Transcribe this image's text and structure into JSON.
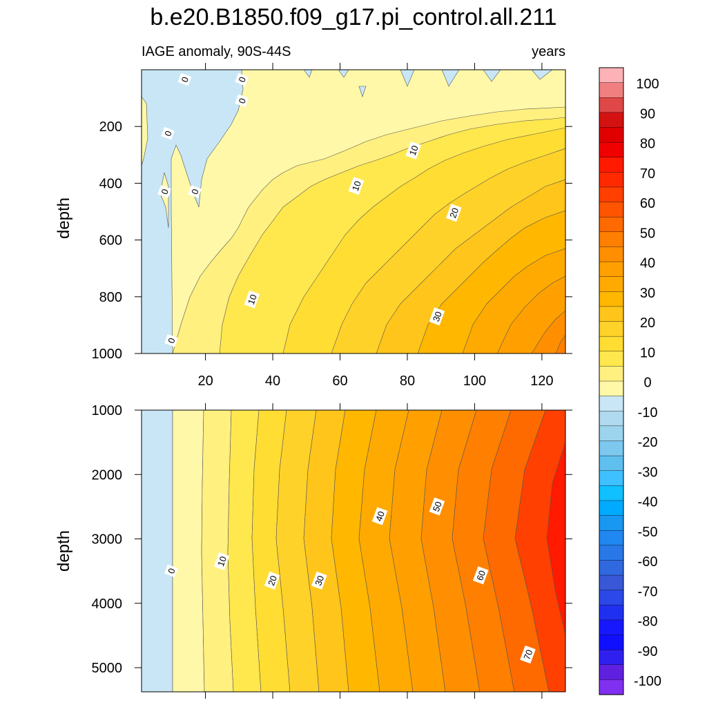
{
  "title": "b.e20.B1850.f09_g17.pi_control.all.211",
  "subtitle_left": "IAGE anomaly, 90S-44S",
  "subtitle_right": "years",
  "chart_data": [
    {
      "type": "heatmap",
      "panel": "upper",
      "ylabel": "depth",
      "xlim": [
        1,
        127
      ],
      "ylim": [
        1000,
        0
      ],
      "x_ticks": [
        20,
        40,
        60,
        80,
        100,
        120
      ],
      "y_ticks": [
        200,
        400,
        600,
        800,
        1000
      ],
      "contour_labels": [
        {
          "text": "0",
          "x": 14,
          "y": 35
        },
        {
          "text": "0",
          "x": 31,
          "y": 35
        },
        {
          "text": "0",
          "x": 31,
          "y": 110
        },
        {
          "text": "0",
          "x": 9,
          "y": 225
        },
        {
          "text": "0",
          "x": 8,
          "y": 430
        },
        {
          "text": "0",
          "x": 17,
          "y": 430
        },
        {
          "text": "10",
          "x": 82,
          "y": 285
        },
        {
          "text": "10",
          "x": 65,
          "y": 410
        },
        {
          "text": "20",
          "x": 94,
          "y": 505
        },
        {
          "text": "10",
          "x": 34,
          "y": 810
        },
        {
          "text": "30",
          "x": 89,
          "y": 870
        },
        {
          "text": "0",
          "x": 10,
          "y": 955
        }
      ]
    },
    {
      "type": "heatmap",
      "panel": "lower",
      "ylabel": "depth",
      "xlim": [
        1,
        127
      ],
      "ylim": [
        5375,
        1000
      ],
      "x_ticks": [
        20,
        40,
        60,
        80,
        100,
        120
      ],
      "y_ticks": [
        1000,
        2000,
        3000,
        4000,
        5000
      ],
      "contour_labels": [
        {
          "text": "0",
          "x": 10,
          "y": 3500
        },
        {
          "text": "10",
          "x": 25,
          "y": 3350
        },
        {
          "text": "20",
          "x": 40,
          "y": 3650
        },
        {
          "text": "30",
          "x": 54,
          "y": 3650
        },
        {
          "text": "40",
          "x": 72,
          "y": 2650
        },
        {
          "text": "50",
          "x": 89,
          "y": 2500
        },
        {
          "text": "60",
          "x": 102,
          "y": 3570
        },
        {
          "text": "70",
          "x": 116,
          "y": 4800
        }
      ]
    }
  ],
  "colorbar": {
    "labels": [
      "100",
      "90",
      "80",
      "70",
      "60",
      "50",
      "40",
      "30",
      "20",
      "10",
      "0",
      "-10",
      "-20",
      "-30",
      "-40",
      "-50",
      "-60",
      "-70",
      "-80",
      "-90",
      "-100"
    ],
    "colors": [
      "#fcb2b6",
      "#f08080",
      "#e04848",
      "#d41212",
      "#e00000",
      "#f00000",
      "#ff1a00",
      "#ff2a00",
      "#ff4000",
      "#ff5500",
      "#ff6a00",
      "#ff7f00",
      "#ff8f00",
      "#ffa000",
      "#ffaa00",
      "#ffb700",
      "#ffc51a",
      "#ffd22a",
      "#ffdd33",
      "#ffe84d",
      "#fff080",
      "#fff8a8",
      "#c8e6f5",
      "#afdaf0",
      "#9cd4ee",
      "#7cc8ee",
      "#5fc0f0",
      "#3fc0ff",
      "#10c0ff",
      "#00aaff",
      "#1898f0",
      "#2088f0",
      "#2878e8",
      "#3068e0",
      "#3858d8",
      "#2c48e8",
      "#2030f0",
      "#1818ff",
      "#1010ff",
      "#3020f0",
      "#6020e0",
      "#8030f0"
    ]
  }
}
